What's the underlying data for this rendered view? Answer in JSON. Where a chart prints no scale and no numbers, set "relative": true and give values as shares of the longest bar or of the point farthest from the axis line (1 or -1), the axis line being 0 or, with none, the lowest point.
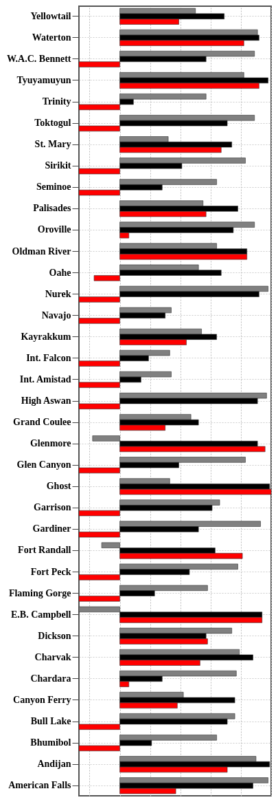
{
  "chart_data": {
    "type": "bar",
    "orientation": "horizontal",
    "relative": true,
    "grid": true,
    "categories": [
      "Yellowtail",
      "Waterton",
      "W.A.C. Bennett",
      "Tyuyamuyun",
      "Trinity",
      "Toktogul",
      "St. Mary",
      "Sirikit",
      "Seminoe",
      "Palisades",
      "Oroville",
      "Oldman River",
      "Oahe",
      "Nurek",
      "Navajo",
      "Kayrakkum",
      "Int. Falcon",
      "Int. Amistad",
      "High Aswan",
      "Grand Coulee",
      "Glenmore",
      "Glen Canyon",
      "Ghost",
      "Garrison",
      "Gardiner",
      "Fort Randall",
      "Fort Peck",
      "Flaming Gorge",
      "E.B. Campbell",
      "Dickson",
      "Charvak",
      "Chardara",
      "Canyon Ferry",
      "Bull Lake",
      "Bhumibol",
      "Andijan",
      "American Falls"
    ],
    "series": [
      {
        "color": "#808080",
        "values": [
          0.5,
          0.91,
          0.89,
          0.82,
          0.57,
          0.89,
          0.32,
          0.83,
          0.64,
          0.55,
          0.89,
          0.64,
          0.52,
          0.98,
          0.34,
          0.54,
          0.33,
          0.34,
          0.97,
          0.47,
          -0.18,
          0.83,
          0.33,
          0.66,
          0.93,
          -0.12,
          0.78,
          0.58,
          -0.27,
          0.74,
          0.79,
          0.77,
          0.42,
          0.76,
          0.64,
          0.9,
          0.98
        ]
      },
      {
        "color": "#000000",
        "values": [
          0.69,
          0.92,
          0.57,
          0.98,
          0.09,
          0.71,
          0.74,
          0.41,
          0.28,
          0.78,
          0.75,
          0.84,
          0.67,
          0.92,
          0.3,
          0.64,
          0.19,
          0.14,
          0.91,
          0.52,
          0.91,
          0.39,
          0.99,
          0.61,
          0.52,
          0.63,
          0.46,
          0.23,
          0.94,
          0.57,
          0.88,
          0.28,
          0.76,
          0.71,
          0.21,
          0.99,
          0.88
        ]
      },
      {
        "color": "#ff0000",
        "values": [
          0.39,
          0.82,
          -0.27,
          0.92,
          -0.27,
          -0.27,
          0.67,
          -0.27,
          -0.27,
          0.57,
          0.06,
          0.84,
          -0.17,
          -0.27,
          -0.27,
          0.44,
          -0.27,
          -0.27,
          -0.27,
          0.3,
          0.96,
          -0.27,
          1.0,
          -0.27,
          -0.27,
          0.81,
          -0.27,
          -0.27,
          0.94,
          0.58,
          0.53,
          0.06,
          0.38,
          -0.27,
          -0.27,
          0.71,
          0.37
        ]
      }
    ]
  }
}
